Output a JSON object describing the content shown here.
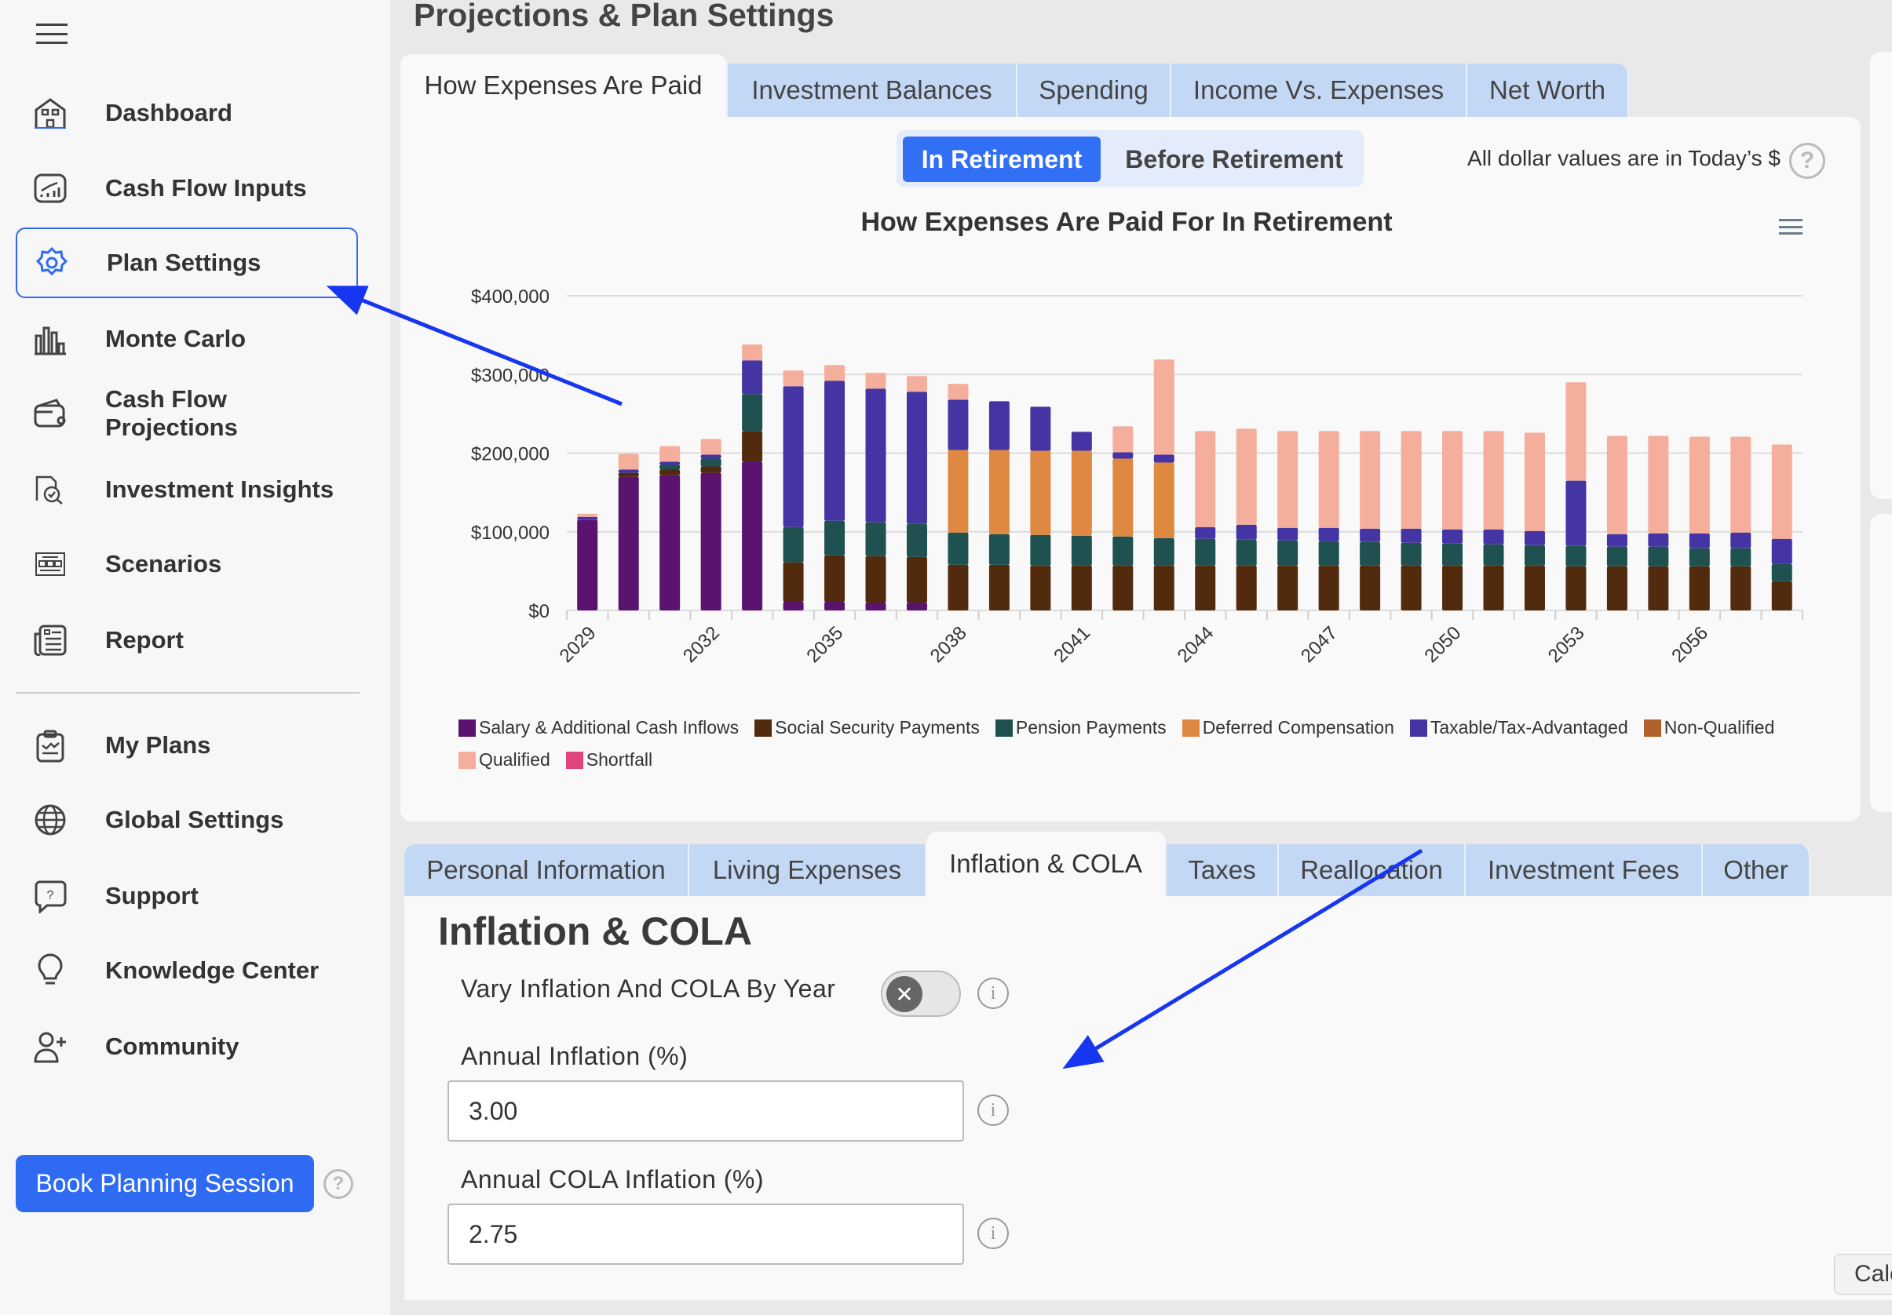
{
  "sidebar": {
    "items": [
      {
        "label": "Dashboard",
        "icon": "house-icon"
      },
      {
        "label": "Cash Flow Inputs",
        "icon": "chart-up-icon"
      },
      {
        "label": "Plan Settings",
        "icon": "gear-icon",
        "active": true
      },
      {
        "label": "Monte Carlo",
        "icon": "bar-chart-icon"
      },
      {
        "label": "Cash Flow Projections",
        "icon": "wallet-icon"
      },
      {
        "label": "Investment Insights",
        "icon": "folder-search-icon"
      },
      {
        "label": "Scenarios",
        "icon": "scenarios-icon"
      },
      {
        "label": "Report",
        "icon": "report-icon"
      }
    ],
    "items2": [
      {
        "label": "My Plans",
        "icon": "clipboard-icon"
      },
      {
        "label": "Global Settings",
        "icon": "globe-icon"
      },
      {
        "label": "Support",
        "icon": "chat-question-icon"
      },
      {
        "label": "Knowledge Center",
        "icon": "lightbulb-icon"
      },
      {
        "label": "Community",
        "icon": "user-plus-icon"
      }
    ],
    "book_button": "Book Planning Session"
  },
  "header": {
    "title": "Projections & Plan Settings"
  },
  "chart_tabs": [
    "How Expenses Are Paid",
    "Investment Balances",
    "Spending",
    "Income Vs. Expenses",
    "Net Worth"
  ],
  "toggle": {
    "on": "In Retirement",
    "off": "Before Retirement"
  },
  "note": "All dollar values are in Today’s $",
  "colors": {
    "accent": "#3170f5",
    "tab": "#c2d8f5"
  },
  "chart_data": {
    "type": "bar",
    "stacked": true,
    "title": "How Expenses Are Paid For In Retirement",
    "ylim": [
      0,
      400000
    ],
    "yticks": [
      "$0",
      "$100,000",
      "$200,000",
      "$300,000",
      "$400,000"
    ],
    "x": [
      2029,
      2030,
      2031,
      2032,
      2033,
      2034,
      2035,
      2036,
      2037,
      2038,
      2039,
      2040,
      2041,
      2042,
      2043,
      2044,
      2045,
      2046,
      2047,
      2048,
      2049,
      2050,
      2051,
      2052,
      2053,
      2054,
      2055,
      2056,
      2057,
      2058
    ],
    "xtick_labels": [
      "2029",
      "2032",
      "2035",
      "2038",
      "2041",
      "2044",
      "2047",
      "2050",
      "2053",
      "2056"
    ],
    "grid": true,
    "legend": "bottom",
    "series": [
      {
        "name": "Salary & Additional Cash Inflows",
        "color": "#5a136e",
        "values": [
          115000,
          170000,
          172000,
          175000,
          189000,
          11000,
          11000,
          10000,
          10000,
          0,
          0,
          0,
          0,
          0,
          0,
          0,
          0,
          0,
          0,
          0,
          0,
          0,
          0,
          0,
          0,
          0,
          0,
          0,
          0,
          0
        ]
      },
      {
        "name": "Social Security Payments",
        "color": "#522b0e",
        "values": [
          0,
          5000,
          7000,
          8000,
          39000,
          50000,
          59000,
          59000,
          58000,
          58000,
          58000,
          57000,
          57000,
          57000,
          57000,
          57000,
          57000,
          57000,
          57000,
          57000,
          57000,
          57000,
          57000,
          57000,
          56000,
          56000,
          56000,
          56000,
          56000,
          37000
        ]
      },
      {
        "name": "Pension Payments",
        "color": "#1f5150",
        "values": [
          0,
          0,
          6000,
          10000,
          47000,
          45000,
          44000,
          43000,
          42000,
          41000,
          39000,
          39000,
          38000,
          37000,
          35000,
          34000,
          33000,
          32000,
          31000,
          30000,
          29000,
          28000,
          27000,
          26000,
          26000,
          25000,
          25000,
          23000,
          23000,
          22000
        ]
      },
      {
        "name": "Deferred Compensation",
        "color": "#de8842",
        "values": [
          0,
          0,
          0,
          0,
          0,
          0,
          0,
          0,
          0,
          105000,
          107000,
          107000,
          108000,
          99000,
          96000,
          0,
          0,
          0,
          0,
          0,
          0,
          0,
          0,
          0,
          0,
          0,
          0,
          0,
          0,
          0
        ]
      },
      {
        "name": "Taxable/Tax-Advantaged",
        "color": "#4535a4",
        "values": [
          4000,
          4000,
          4000,
          5000,
          43000,
          179000,
          178000,
          170000,
          168000,
          64000,
          62000,
          56000,
          24000,
          8000,
          10000,
          15000,
          19000,
          16000,
          17000,
          17000,
          18000,
          18000,
          19000,
          18000,
          83000,
          16000,
          17000,
          19000,
          20000,
          32000
        ]
      },
      {
        "name": "Non-Qualified",
        "color": "#b0602a",
        "values": [
          0,
          0,
          0,
          0,
          0,
          0,
          0,
          0,
          0,
          0,
          0,
          0,
          0,
          0,
          0,
          0,
          0,
          0,
          0,
          0,
          0,
          0,
          0,
          0,
          0,
          0,
          0,
          0,
          0,
          0
        ]
      },
      {
        "name": "Qualified",
        "color": "#f5ae9b",
        "values": [
          4000,
          20000,
          20000,
          20000,
          20000,
          20000,
          20000,
          20000,
          20000,
          20000,
          0,
          0,
          0,
          33000,
          121000,
          122000,
          122000,
          123000,
          123000,
          124000,
          124000,
          125000,
          125000,
          125000,
          125000,
          125000,
          124000,
          123000,
          122000,
          120000
        ]
      },
      {
        "name": "Shortfall",
        "color": "#e0457b",
        "values": [
          0,
          0,
          0,
          0,
          0,
          0,
          0,
          0,
          0,
          0,
          0,
          0,
          0,
          0,
          0,
          0,
          0,
          0,
          0,
          0,
          0,
          0,
          0,
          0,
          0,
          0,
          0,
          0,
          0,
          0
        ]
      }
    ]
  },
  "settings_tabs": [
    "Personal Information",
    "Living Expenses",
    "Inflation & COLA",
    "Taxes",
    "Reallocation",
    "Investment Fees",
    "Other"
  ],
  "form": {
    "heading": "Inflation & COLA",
    "vary_label": "Vary Inflation And COLA By Year",
    "vary_on": false,
    "inflation_label": "Annual Inflation (%)",
    "inflation_value": "3.00",
    "cola_label": "Annual COLA Inflation (%)",
    "cola_value": "2.75"
  },
  "calc_button": "Calc"
}
